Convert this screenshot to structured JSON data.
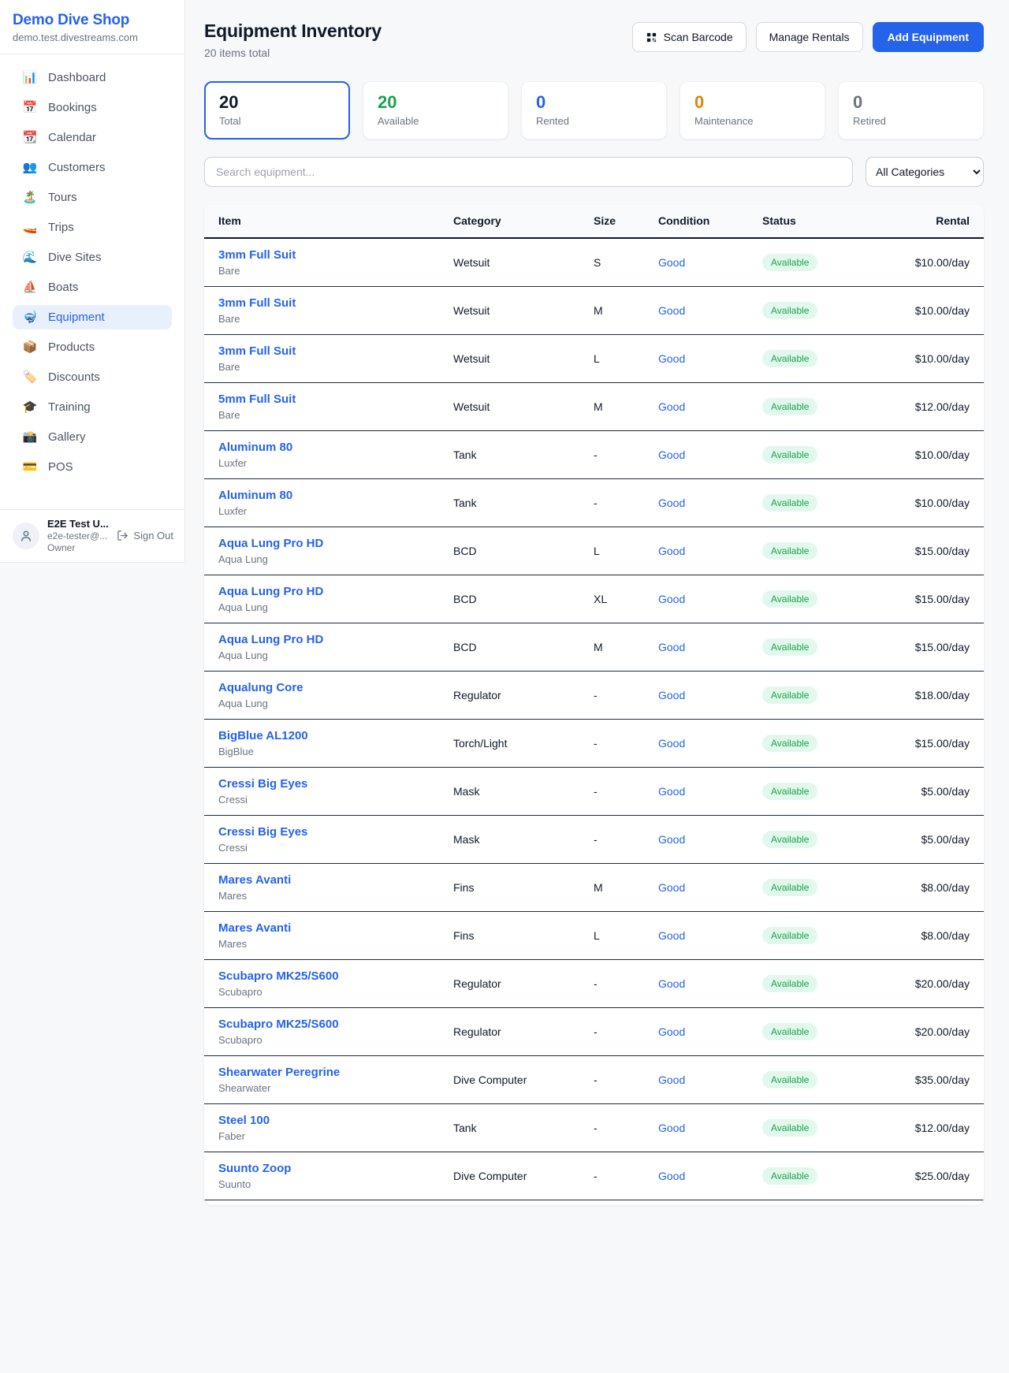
{
  "sidebar": {
    "brand": "Demo Dive Shop",
    "domain": "demo.test.divestreams.com",
    "items": [
      {
        "icon": "📊",
        "label": "Dashboard"
      },
      {
        "icon": "📅",
        "label": "Bookings"
      },
      {
        "icon": "📆",
        "label": "Calendar"
      },
      {
        "icon": "👥",
        "label": "Customers"
      },
      {
        "icon": "🏝️",
        "label": "Tours"
      },
      {
        "icon": "🚤",
        "label": "Trips"
      },
      {
        "icon": "🌊",
        "label": "Dive Sites"
      },
      {
        "icon": "⛵",
        "label": "Boats"
      },
      {
        "icon": "🤿",
        "label": "Equipment",
        "active": true
      },
      {
        "icon": "📦",
        "label": "Products"
      },
      {
        "icon": "🏷️",
        "label": "Discounts"
      },
      {
        "icon": "🎓",
        "label": "Training"
      },
      {
        "icon": "📸",
        "label": "Gallery"
      },
      {
        "icon": "💳",
        "label": "POS"
      }
    ],
    "user": {
      "name": "E2E Test U...",
      "email": "e2e-tester@...",
      "role": "Owner",
      "signout_label": "Sign Out"
    }
  },
  "header": {
    "title": "Equipment Inventory",
    "subtitle": "20 items total",
    "scan_label": "Scan Barcode",
    "manage_label": "Manage Rentals",
    "add_label": "Add Equipment"
  },
  "stats": [
    {
      "value": "20",
      "label": "Total",
      "color": "#111827",
      "active": true
    },
    {
      "value": "20",
      "label": "Available",
      "color": "#16a34a",
      "active": false
    },
    {
      "value": "0",
      "label": "Rented",
      "color": "#2563eb",
      "active": false
    },
    {
      "value": "0",
      "label": "Maintenance",
      "color": "#e0830a",
      "active": false
    },
    {
      "value": "0",
      "label": "Retired",
      "color": "#6b7280",
      "active": false
    }
  ],
  "filters": {
    "search_placeholder": "Search equipment...",
    "category_selected": "All Categories"
  },
  "table": {
    "columns": [
      "Item",
      "Category",
      "Size",
      "Condition",
      "Status",
      "Rental"
    ],
    "status_badge": {
      "bg": "#e3f8ec",
      "text": "#16a34a"
    },
    "rows": [
      {
        "name": "3mm Full Suit",
        "brand": "Bare",
        "category": "Wetsuit",
        "size": "S",
        "condition": "Good",
        "status": "Available",
        "rental": "$10.00/day"
      },
      {
        "name": "3mm Full Suit",
        "brand": "Bare",
        "category": "Wetsuit",
        "size": "M",
        "condition": "Good",
        "status": "Available",
        "rental": "$10.00/day"
      },
      {
        "name": "3mm Full Suit",
        "brand": "Bare",
        "category": "Wetsuit",
        "size": "L",
        "condition": "Good",
        "status": "Available",
        "rental": "$10.00/day"
      },
      {
        "name": "5mm Full Suit",
        "brand": "Bare",
        "category": "Wetsuit",
        "size": "M",
        "condition": "Good",
        "status": "Available",
        "rental": "$12.00/day"
      },
      {
        "name": "Aluminum 80",
        "brand": "Luxfer",
        "category": "Tank",
        "size": "-",
        "condition": "Good",
        "status": "Available",
        "rental": "$10.00/day"
      },
      {
        "name": "Aluminum 80",
        "brand": "Luxfer",
        "category": "Tank",
        "size": "-",
        "condition": "Good",
        "status": "Available",
        "rental": "$10.00/day"
      },
      {
        "name": "Aqua Lung Pro HD",
        "brand": "Aqua Lung",
        "category": "BCD",
        "size": "L",
        "condition": "Good",
        "status": "Available",
        "rental": "$15.00/day"
      },
      {
        "name": "Aqua Lung Pro HD",
        "brand": "Aqua Lung",
        "category": "BCD",
        "size": "XL",
        "condition": "Good",
        "status": "Available",
        "rental": "$15.00/day"
      },
      {
        "name": "Aqua Lung Pro HD",
        "brand": "Aqua Lung",
        "category": "BCD",
        "size": "M",
        "condition": "Good",
        "status": "Available",
        "rental": "$15.00/day"
      },
      {
        "name": "Aqualung Core",
        "brand": "Aqua Lung",
        "category": "Regulator",
        "size": "-",
        "condition": "Good",
        "status": "Available",
        "rental": "$18.00/day"
      },
      {
        "name": "BigBlue AL1200",
        "brand": "BigBlue",
        "category": "Torch/Light",
        "size": "-",
        "condition": "Good",
        "status": "Available",
        "rental": "$15.00/day"
      },
      {
        "name": "Cressi Big Eyes",
        "brand": "Cressi",
        "category": "Mask",
        "size": "-",
        "condition": "Good",
        "status": "Available",
        "rental": "$5.00/day"
      },
      {
        "name": "Cressi Big Eyes",
        "brand": "Cressi",
        "category": "Mask",
        "size": "-",
        "condition": "Good",
        "status": "Available",
        "rental": "$5.00/day"
      },
      {
        "name": "Mares Avanti",
        "brand": "Mares",
        "category": "Fins",
        "size": "M",
        "condition": "Good",
        "status": "Available",
        "rental": "$8.00/day"
      },
      {
        "name": "Mares Avanti",
        "brand": "Mares",
        "category": "Fins",
        "size": "L",
        "condition": "Good",
        "status": "Available",
        "rental": "$8.00/day"
      },
      {
        "name": "Scubapro MK25/S600",
        "brand": "Scubapro",
        "category": "Regulator",
        "size": "-",
        "condition": "Good",
        "status": "Available",
        "rental": "$20.00/day"
      },
      {
        "name": "Scubapro MK25/S600",
        "brand": "Scubapro",
        "category": "Regulator",
        "size": "-",
        "condition": "Good",
        "status": "Available",
        "rental": "$20.00/day"
      },
      {
        "name": "Shearwater Peregrine",
        "brand": "Shearwater",
        "category": "Dive Computer",
        "size": "-",
        "condition": "Good",
        "status": "Available",
        "rental": "$35.00/day"
      },
      {
        "name": "Steel 100",
        "brand": "Faber",
        "category": "Tank",
        "size": "-",
        "condition": "Good",
        "status": "Available",
        "rental": "$12.00/day"
      },
      {
        "name": "Suunto Zoop",
        "brand": "Suunto",
        "category": "Dive Computer",
        "size": "-",
        "condition": "Good",
        "status": "Available",
        "rental": "$25.00/day"
      }
    ]
  }
}
